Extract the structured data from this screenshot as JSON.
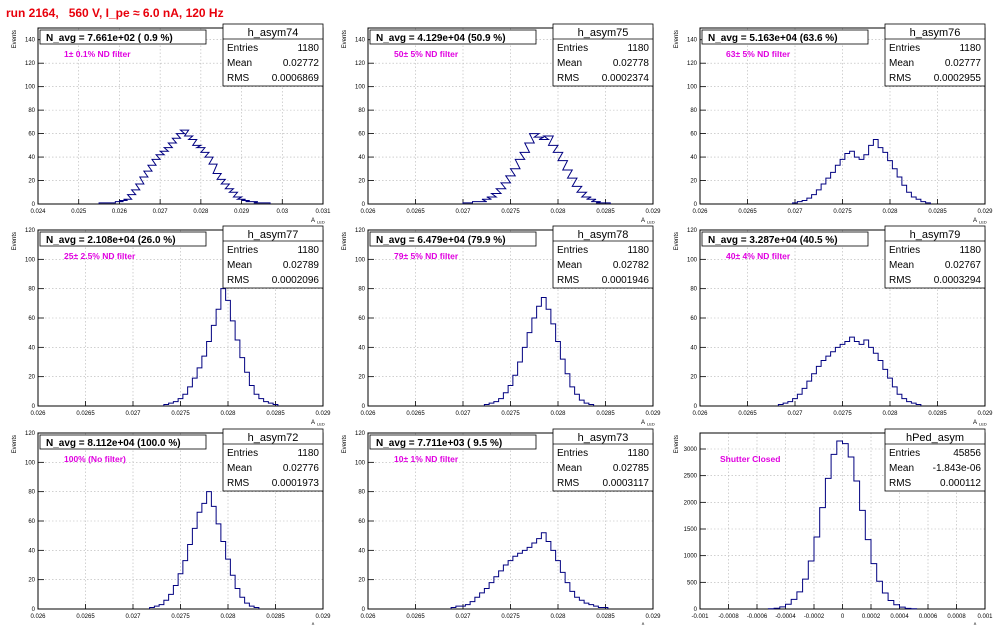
{
  "page_title": "run 2164,   560 V, I_pe ≈ 6.0 nA, 120 Hz",
  "colors": {
    "title": "#e8000b",
    "histogram": "#000080",
    "annotation": "#e000e0",
    "grid": "#b4b4b4"
  },
  "stats_labels": {
    "entries": "Entries",
    "mean": "Mean",
    "rms": "RMS"
  },
  "axis_labels": {
    "y": "Events",
    "x": "A",
    "x_sub": "LED"
  },
  "chart_data": [
    {
      "type": "histogram",
      "name": "h_asym74",
      "header": "N_avg = 7.661e+02 ( 0.9 %)",
      "annotation": "1± 0.1% ND filter",
      "stats": {
        "entries": "1180",
        "mean": "0.02772",
        "rms": "0.0006869"
      },
      "xlim": [
        0.024,
        0.031
      ],
      "ylim": [
        0,
        150
      ],
      "xticks": [
        "0.024",
        "0.025",
        "0.026",
        "0.027",
        "0.028",
        "0.029",
        "0.03",
        "0.031"
      ],
      "yticks": [
        "0",
        "20",
        "40",
        "60",
        "80",
        "100",
        "120",
        "140"
      ],
      "bins": [
        [
          0.0256,
          1
        ],
        [
          0.0258,
          1
        ],
        [
          0.026,
          2
        ],
        [
          0.0261,
          3
        ],
        [
          0.0262,
          4
        ],
        [
          0.0263,
          8
        ],
        [
          0.0264,
          12
        ],
        [
          0.0265,
          17
        ],
        [
          0.0266,
          23
        ],
        [
          0.0267,
          28
        ],
        [
          0.0268,
          33
        ],
        [
          0.0269,
          38
        ],
        [
          0.027,
          42
        ],
        [
          0.0271,
          45
        ],
        [
          0.0272,
          48
        ],
        [
          0.0273,
          52
        ],
        [
          0.0274,
          56
        ],
        [
          0.0275,
          60
        ],
        [
          0.0276,
          63
        ],
        [
          0.0277,
          58
        ],
        [
          0.0278,
          55
        ],
        [
          0.0279,
          50
        ],
        [
          0.028,
          48
        ],
        [
          0.0281,
          44
        ],
        [
          0.0282,
          40
        ],
        [
          0.0283,
          34
        ],
        [
          0.0284,
          26
        ],
        [
          0.0285,
          21
        ],
        [
          0.0286,
          17
        ],
        [
          0.0287,
          13
        ],
        [
          0.0288,
          10
        ],
        [
          0.0289,
          6
        ],
        [
          0.029,
          4
        ],
        [
          0.0291,
          3
        ],
        [
          0.0292,
          2
        ],
        [
          0.0293,
          2
        ],
        [
          0.0294,
          1
        ],
        [
          0.0296,
          1
        ]
      ]
    },
    {
      "type": "histogram",
      "name": "h_asym75",
      "header": "N_avg = 4.129e+04 (50.9 %)",
      "annotation": "50± 5% ND filter",
      "stats": {
        "entries": "1180",
        "mean": "0.02778",
        "rms": "0.0002374"
      },
      "xlim": [
        0.026,
        0.029
      ],
      "ylim": [
        0,
        150
      ],
      "xticks": [
        "0.026",
        "0.0265",
        "0.027",
        "0.0275",
        "0.028",
        "0.0285",
        "0.029"
      ],
      "yticks": [
        "0",
        "20",
        "40",
        "60",
        "80",
        "100",
        "120",
        "140"
      ],
      "bins": [
        [
          0.02705,
          1
        ],
        [
          0.02715,
          2
        ],
        [
          0.0272,
          2
        ],
        [
          0.02725,
          4
        ],
        [
          0.0273,
          6
        ],
        [
          0.02735,
          9
        ],
        [
          0.0274,
          13
        ],
        [
          0.02745,
          18
        ],
        [
          0.0275,
          24
        ],
        [
          0.02755,
          30
        ],
        [
          0.0276,
          38
        ],
        [
          0.02765,
          44
        ],
        [
          0.0277,
          52
        ],
        [
          0.02775,
          60
        ],
        [
          0.0278,
          57
        ],
        [
          0.02785,
          55
        ],
        [
          0.0279,
          58
        ],
        [
          0.02795,
          50
        ],
        [
          0.028,
          44
        ],
        [
          0.02805,
          37
        ],
        [
          0.0281,
          29
        ],
        [
          0.02815,
          22
        ],
        [
          0.0282,
          15
        ],
        [
          0.02825,
          10
        ],
        [
          0.0283,
          6
        ],
        [
          0.02835,
          4
        ],
        [
          0.0284,
          2
        ],
        [
          0.02845,
          1
        ],
        [
          0.0285,
          1
        ]
      ]
    },
    {
      "type": "histogram",
      "name": "h_asym76",
      "header": "N_avg = 5.163e+04 (63.6 %)",
      "annotation": "63± 5% ND filter",
      "stats": {
        "entries": "1180",
        "mean": "0.02777",
        "rms": "0.0002955"
      },
      "xlim": [
        0.026,
        0.029
      ],
      "ylim": [
        0,
        150
      ],
      "xticks": [
        "0.026",
        "0.0265",
        "0.027",
        "0.0275",
        "0.028",
        "0.0285",
        "0.029"
      ],
      "yticks": [
        "0",
        "20",
        "40",
        "60",
        "80",
        "100",
        "120",
        "140"
      ],
      "bins": [
        [
          0.027,
          1
        ],
        [
          0.02705,
          2
        ],
        [
          0.0271,
          3
        ],
        [
          0.02715,
          5
        ],
        [
          0.0272,
          8
        ],
        [
          0.02725,
          12
        ],
        [
          0.0273,
          17
        ],
        [
          0.02735,
          22
        ],
        [
          0.0274,
          27
        ],
        [
          0.02745,
          33
        ],
        [
          0.0275,
          38
        ],
        [
          0.02755,
          43
        ],
        [
          0.0276,
          45
        ],
        [
          0.02765,
          40
        ],
        [
          0.0277,
          38
        ],
        [
          0.02775,
          42
        ],
        [
          0.0278,
          50
        ],
        [
          0.02785,
          55
        ],
        [
          0.0279,
          48
        ],
        [
          0.02795,
          44
        ],
        [
          0.028,
          37
        ],
        [
          0.02805,
          30
        ],
        [
          0.0281,
          23
        ],
        [
          0.02815,
          16
        ],
        [
          0.0282,
          10
        ],
        [
          0.02825,
          6
        ],
        [
          0.0283,
          4
        ],
        [
          0.02835,
          2
        ],
        [
          0.0284,
          1
        ]
      ]
    },
    {
      "type": "histogram",
      "name": "h_asym77",
      "header": "N_avg = 2.108e+04 (26.0 %)",
      "annotation": "25± 2.5% ND filter",
      "stats": {
        "entries": "1180",
        "mean": "0.02789",
        "rms": "0.0002096"
      },
      "xlim": [
        0.026,
        0.029
      ],
      "ylim": [
        0,
        120
      ],
      "xticks": [
        "0.026",
        "0.0265",
        "0.027",
        "0.0275",
        "0.028",
        "0.0285",
        "0.029"
      ],
      "yticks": [
        "0",
        "20",
        "40",
        "60",
        "80",
        "100",
        "120"
      ],
      "bins": [
        [
          0.02735,
          1
        ],
        [
          0.0274,
          2
        ],
        [
          0.02745,
          3
        ],
        [
          0.0275,
          5
        ],
        [
          0.02755,
          8
        ],
        [
          0.0276,
          13
        ],
        [
          0.02765,
          19
        ],
        [
          0.0277,
          26
        ],
        [
          0.02775,
          34
        ],
        [
          0.0278,
          44
        ],
        [
          0.02785,
          55
        ],
        [
          0.0279,
          66
        ],
        [
          0.02795,
          80
        ],
        [
          0.028,
          72
        ],
        [
          0.02805,
          58
        ],
        [
          0.0281,
          45
        ],
        [
          0.02815,
          33
        ],
        [
          0.0282,
          23
        ],
        [
          0.02825,
          14
        ],
        [
          0.0283,
          8
        ],
        [
          0.02835,
          5
        ],
        [
          0.0284,
          3
        ],
        [
          0.02845,
          2
        ],
        [
          0.0285,
          1
        ]
      ]
    },
    {
      "type": "histogram",
      "name": "h_asym78",
      "header": "N_avg = 6.479e+04 (79.9 %)",
      "annotation": "79± 5% ND filter",
      "stats": {
        "entries": "1180",
        "mean": "0.02782",
        "rms": "0.0001946"
      },
      "xlim": [
        0.026,
        0.029
      ],
      "ylim": [
        0,
        120
      ],
      "xticks": [
        "0.026",
        "0.0265",
        "0.027",
        "0.0275",
        "0.028",
        "0.0285",
        "0.029"
      ],
      "yticks": [
        "0",
        "20",
        "40",
        "60",
        "80",
        "100",
        "120"
      ],
      "bins": [
        [
          0.02725,
          1
        ],
        [
          0.0273,
          2
        ],
        [
          0.02735,
          3
        ],
        [
          0.0274,
          5
        ],
        [
          0.02745,
          9
        ],
        [
          0.0275,
          14
        ],
        [
          0.02755,
          21
        ],
        [
          0.0276,
          30
        ],
        [
          0.02765,
          40
        ],
        [
          0.0277,
          50
        ],
        [
          0.02775,
          60
        ],
        [
          0.0278,
          68
        ],
        [
          0.02785,
          74
        ],
        [
          0.0279,
          66
        ],
        [
          0.02795,
          56
        ],
        [
          0.028,
          44
        ],
        [
          0.02805,
          32
        ],
        [
          0.0281,
          22
        ],
        [
          0.02815,
          13
        ],
        [
          0.0282,
          8
        ],
        [
          0.02825,
          4
        ],
        [
          0.0283,
          2
        ],
        [
          0.02835,
          1
        ]
      ]
    },
    {
      "type": "histogram",
      "name": "h_asym79",
      "header": "N_avg = 3.287e+04 (40.5 %)",
      "annotation": "40± 4% ND filter",
      "stats": {
        "entries": "1180",
        "mean": "0.02767",
        "rms": "0.0003294"
      },
      "xlim": [
        0.026,
        0.029
      ],
      "ylim": [
        0,
        120
      ],
      "xticks": [
        "0.026",
        "0.0265",
        "0.027",
        "0.0275",
        "0.028",
        "0.0285",
        "0.029"
      ],
      "yticks": [
        "0",
        "20",
        "40",
        "60",
        "80",
        "100",
        "120"
      ],
      "bins": [
        [
          0.02685,
          1
        ],
        [
          0.0269,
          2
        ],
        [
          0.02695,
          3
        ],
        [
          0.027,
          5
        ],
        [
          0.02705,
          8
        ],
        [
          0.0271,
          12
        ],
        [
          0.02715,
          17
        ],
        [
          0.0272,
          22
        ],
        [
          0.02725,
          27
        ],
        [
          0.0273,
          31
        ],
        [
          0.02735,
          34
        ],
        [
          0.0274,
          37
        ],
        [
          0.02745,
          40
        ],
        [
          0.0275,
          42
        ],
        [
          0.02755,
          44
        ],
        [
          0.0276,
          47
        ],
        [
          0.02765,
          44
        ],
        [
          0.0277,
          42
        ],
        [
          0.02775,
          45
        ],
        [
          0.0278,
          40
        ],
        [
          0.02785,
          36
        ],
        [
          0.0279,
          31
        ],
        [
          0.02795,
          25
        ],
        [
          0.028,
          19
        ],
        [
          0.02805,
          13
        ],
        [
          0.0281,
          8
        ],
        [
          0.02815,
          5
        ],
        [
          0.0282,
          3
        ],
        [
          0.02825,
          2
        ],
        [
          0.0283,
          1
        ]
      ]
    },
    {
      "type": "histogram",
      "name": "h_asym72",
      "header": "N_avg = 8.112e+04 (100.0 %)",
      "annotation": "100% (No filter)",
      "stats": {
        "entries": "1180",
        "mean": "0.02776",
        "rms": "0.0001973"
      },
      "xlim": [
        0.026,
        0.029
      ],
      "ylim": [
        0,
        120
      ],
      "xticks": [
        "0.026",
        "0.0265",
        "0.027",
        "0.0275",
        "0.028",
        "0.0285",
        "0.029"
      ],
      "yticks": [
        "0",
        "20",
        "40",
        "60",
        "80",
        "100",
        "120"
      ],
      "bins": [
        [
          0.0272,
          1
        ],
        [
          0.02725,
          2
        ],
        [
          0.0273,
          3
        ],
        [
          0.02735,
          6
        ],
        [
          0.0274,
          10
        ],
        [
          0.02745,
          16
        ],
        [
          0.0275,
          24
        ],
        [
          0.02755,
          33
        ],
        [
          0.0276,
          44
        ],
        [
          0.02765,
          55
        ],
        [
          0.0277,
          66
        ],
        [
          0.02775,
          72
        ],
        [
          0.0278,
          80
        ],
        [
          0.02785,
          70
        ],
        [
          0.0279,
          58
        ],
        [
          0.02795,
          46
        ],
        [
          0.028,
          34
        ],
        [
          0.02805,
          23
        ],
        [
          0.0281,
          14
        ],
        [
          0.02815,
          8
        ],
        [
          0.0282,
          4
        ],
        [
          0.02825,
          2
        ],
        [
          0.0283,
          1
        ]
      ]
    },
    {
      "type": "histogram",
      "name": "h_asym73",
      "header": "N_avg = 7.711e+03 ( 9.5 %)",
      "annotation": "10± 1% ND filter",
      "stats": {
        "entries": "1180",
        "mean": "0.02785",
        "rms": "0.0003117"
      },
      "xlim": [
        0.026,
        0.029
      ],
      "ylim": [
        0,
        120
      ],
      "xticks": [
        "0.026",
        "0.0265",
        "0.027",
        "0.0275",
        "0.028",
        "0.0285",
        "0.029"
      ],
      "yticks": [
        "0",
        "20",
        "40",
        "60",
        "80",
        "100",
        "120"
      ],
      "bins": [
        [
          0.0269,
          1
        ],
        [
          0.02695,
          2
        ],
        [
          0.027,
          2
        ],
        [
          0.02705,
          3
        ],
        [
          0.0271,
          5
        ],
        [
          0.02715,
          8
        ],
        [
          0.0272,
          11
        ],
        [
          0.02725,
          14
        ],
        [
          0.0273,
          18
        ],
        [
          0.02735,
          22
        ],
        [
          0.0274,
          26
        ],
        [
          0.02745,
          30
        ],
        [
          0.0275,
          33
        ],
        [
          0.02755,
          36
        ],
        [
          0.0276,
          38
        ],
        [
          0.02765,
          40
        ],
        [
          0.0277,
          42
        ],
        [
          0.02775,
          45
        ],
        [
          0.0278,
          48
        ],
        [
          0.02785,
          52
        ],
        [
          0.0279,
          46
        ],
        [
          0.02795,
          40
        ],
        [
          0.028,
          33
        ],
        [
          0.02805,
          25
        ],
        [
          0.0281,
          18
        ],
        [
          0.02815,
          12
        ],
        [
          0.0282,
          8
        ],
        [
          0.02825,
          6
        ],
        [
          0.0283,
          4
        ],
        [
          0.02835,
          3
        ],
        [
          0.0284,
          2
        ],
        [
          0.02845,
          1
        ],
        [
          0.0285,
          1
        ]
      ]
    },
    {
      "type": "histogram",
      "name": "hPed_asym",
      "header": "",
      "annotation": "Shutter Closed",
      "stats": {
        "entries": "45856",
        "mean": "-1.843e-06",
        "rms": "0.000112"
      },
      "xlim": [
        -0.001,
        0.001
      ],
      "ylim": [
        0,
        3300
      ],
      "xticks": [
        "-0.001",
        "-0.0008",
        "-0.0006",
        "-0.0004",
        "-0.0002",
        "0",
        "0.0002",
        "0.0004",
        "0.0006",
        "0.0008",
        "0.001"
      ],
      "yticks": [
        "0",
        "500",
        "1000",
        "1500",
        "2000",
        "2500",
        "3000"
      ],
      "bins": [
        [
          -0.0005,
          5
        ],
        [
          -0.00046,
          15
        ],
        [
          -0.00042,
          40
        ],
        [
          -0.00038,
          90
        ],
        [
          -0.00034,
          180
        ],
        [
          -0.0003,
          320
        ],
        [
          -0.00026,
          560
        ],
        [
          -0.00022,
          900
        ],
        [
          -0.00018,
          1350
        ],
        [
          -0.00014,
          1900
        ],
        [
          -0.0001,
          2450
        ],
        [
          -6e-05,
          2900
        ],
        [
          -2e-05,
          3150
        ],
        [
          2e-05,
          3100
        ],
        [
          6e-05,
          2850
        ],
        [
          0.0001,
          2400
        ],
        [
          0.00014,
          1850
        ],
        [
          0.00018,
          1300
        ],
        [
          0.00022,
          850
        ],
        [
          0.00026,
          520
        ],
        [
          0.0003,
          300
        ],
        [
          0.00034,
          160
        ],
        [
          0.00038,
          80
        ],
        [
          0.00042,
          35
        ],
        [
          0.00046,
          12
        ],
        [
          0.0005,
          4
        ]
      ]
    }
  ]
}
